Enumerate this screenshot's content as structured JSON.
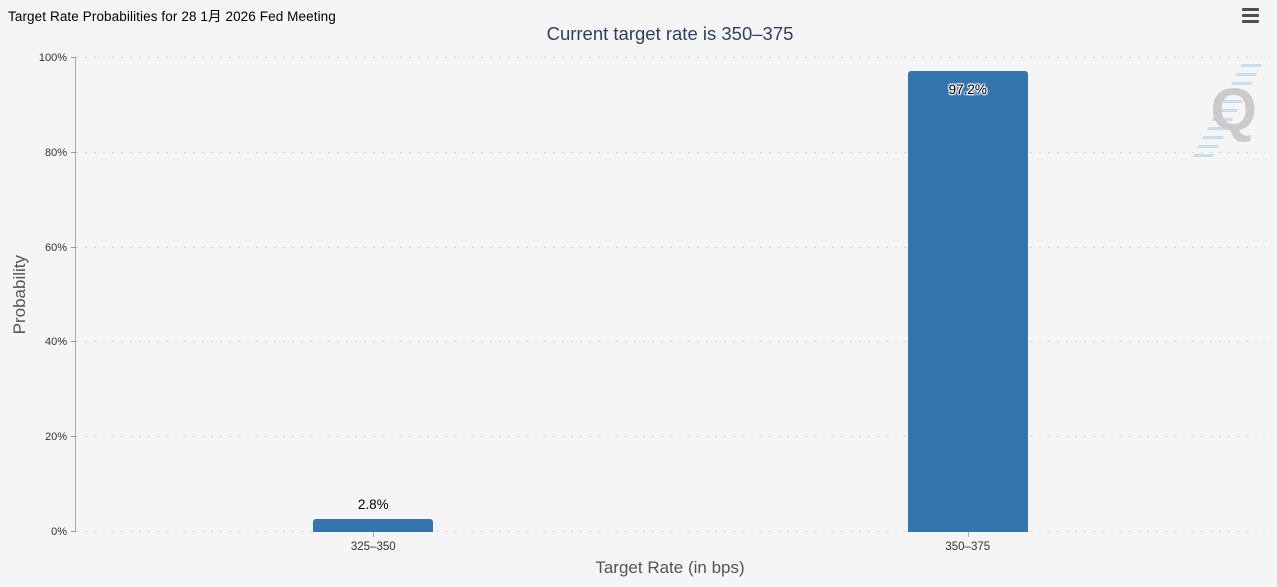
{
  "page": {
    "title": "Target Rate Probabilities for 28 1月 2026 Fed Meeting"
  },
  "toolbar": {
    "menu_icon": "hamburger-icon"
  },
  "chart": {
    "watermark_letter": "Q"
  },
  "chart_data": {
    "type": "bar",
    "title": "Current target rate is 350–375",
    "categories": [
      "325–350",
      "350–375"
    ],
    "values": [
      2.8,
      97.2
    ],
    "value_labels": [
      "2.8%",
      "97.2%"
    ],
    "xlabel": "Target Rate (in bps)",
    "ylabel": "Probability",
    "ylim": [
      0,
      100
    ],
    "yticks": [
      0,
      20,
      40,
      60,
      80,
      100
    ],
    "ytick_labels": [
      "0%",
      "20%",
      "40%",
      "60%",
      "80%",
      "100%"
    ],
    "grid": "dotted-horizontal",
    "legend": "none"
  },
  "colors": {
    "background": "#f5f5f5",
    "bar": "#3575ae",
    "subtitle": "#2e4162",
    "gridline": "#d4d4d4",
    "axis": "#a8a8a8",
    "axis_title": "#555555",
    "tick_label": "#333333",
    "watermark_gray": "#c8c8c8",
    "watermark_blue": "#c3ddee"
  }
}
